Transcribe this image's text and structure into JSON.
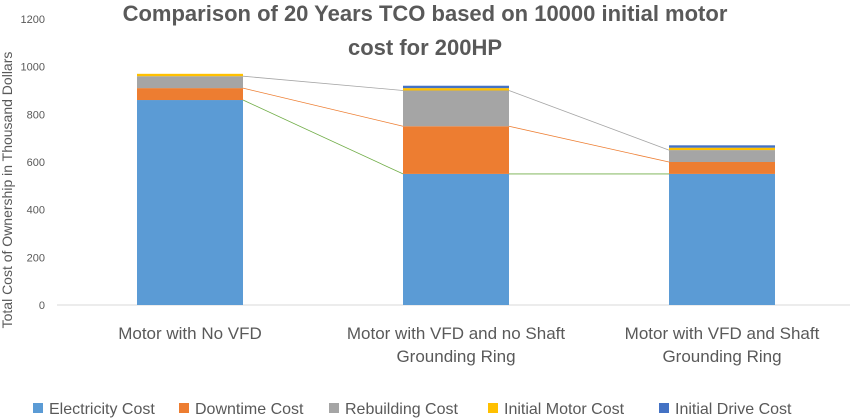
{
  "chart_data": {
    "type": "bar",
    "stacked": true,
    "title_lines": [
      "Comparison of 20 Years TCO based on 10000 initial motor",
      "cost for 200HP"
    ],
    "ylabel": "Total Cost of Ownership in Thousand Dollars",
    "xlabel": "",
    "ylim": [
      0,
      1200
    ],
    "yticks": [
      0,
      200,
      400,
      600,
      800,
      1000,
      1200
    ],
    "grid": false,
    "legend_position": "bottom",
    "categories": [
      [
        "Motor with No VFD"
      ],
      [
        "Motor with VFD and no Shaft",
        "Grounding Ring"
      ],
      [
        "Motor with VFD and Shaft",
        "Grounding Ring"
      ]
    ],
    "series": [
      {
        "name": "Electricity Cost",
        "color": "#5b9bd5",
        "values": [
          860,
          550,
          550
        ]
      },
      {
        "name": "Downtime Cost",
        "color": "#ed7d31",
        "values": [
          50,
          200,
          50
        ]
      },
      {
        "name": "Rebuilding Cost",
        "color": "#a5a5a5",
        "values": [
          50,
          150,
          50
        ]
      },
      {
        "name": "Initial Motor Cost",
        "color": "#ffc000",
        "values": [
          10,
          10,
          10
        ]
      },
      {
        "name": "Initial Drive Cost",
        "color": "#4472c4",
        "values": [
          0,
          10,
          10
        ]
      }
    ],
    "connector_colors": [
      "#70ad47",
      "#ed7d31",
      "#a5a5a5"
    ]
  }
}
